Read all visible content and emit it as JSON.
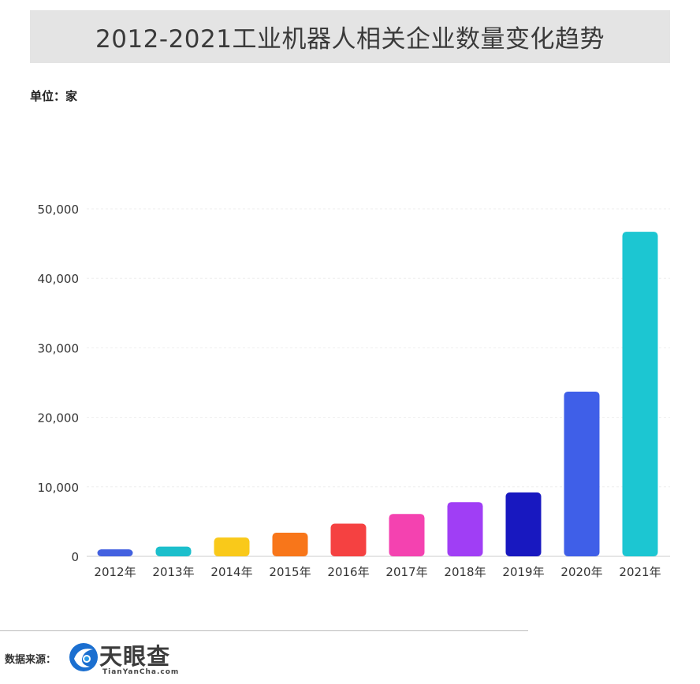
{
  "header": {
    "title": "2012-2021工业机器人相关企业数量变化趋势"
  },
  "unit_label": "单位：家",
  "footer": {
    "source_label": "数据来源：",
    "logo_text": "天眼查",
    "logo_domain": "TianYanCha.com"
  },
  "chart_data": {
    "type": "bar",
    "title": "2012-2021工业机器人相关企业数量变化趋势",
    "xlabel": "",
    "ylabel": "单位：家",
    "ylim": [
      0,
      50000
    ],
    "yticks": [
      0,
      10000,
      20000,
      30000,
      40000,
      50000
    ],
    "ytick_labels": [
      "0",
      "10,000",
      "20,000",
      "30,000",
      "40,000",
      "50,000"
    ],
    "grid": true,
    "categories": [
      "2012年",
      "2013年",
      "2014年",
      "2015年",
      "2016年",
      "2017年",
      "2018年",
      "2019年",
      "2020年",
      "2021年"
    ],
    "values": [
      1000,
      1400,
      2700,
      3400,
      4700,
      6100,
      7800,
      9200,
      23700,
      46700
    ],
    "colors": [
      "#4361e0",
      "#1cbfcc",
      "#f9c91a",
      "#f8761a",
      "#f54141",
      "#f442b0",
      "#a03ef5",
      "#1818c0",
      "#3f5fe8",
      "#1cc6d2"
    ]
  }
}
